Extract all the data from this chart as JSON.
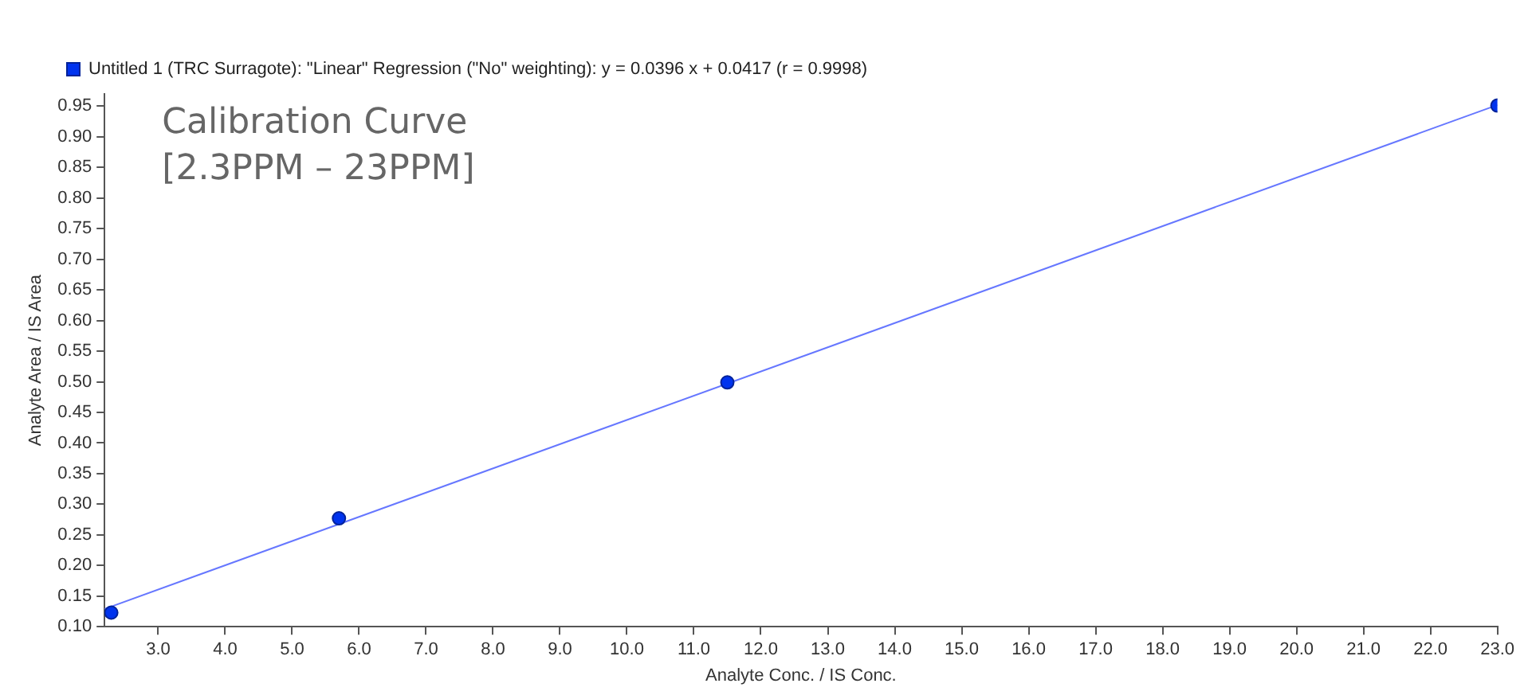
{
  "chart_data": {
    "type": "scatter",
    "xlabel": "Analyte Conc. / IS Conc.",
    "ylabel": "Analyte Area / IS Area",
    "annotations": [
      "Calibration Curve",
      "[2.3PPM – 23PPM]"
    ],
    "series": [
      {
        "name": "Untitled 1 (TRC Surragote): \"Linear\" Regression (\"No\" weighting): y = 0.0396 x + 0.0417 (r = 0.9998)",
        "marker": "circle",
        "color": "#0033ee",
        "x": [
          2.3,
          5.7,
          11.5,
          23.0
        ],
        "values": [
          0.123,
          0.277,
          0.499,
          0.951
        ]
      },
      {
        "type": "line",
        "marker": "none",
        "color": "#6677ff",
        "x": [
          2.2,
          23.0
        ],
        "values": [
          0.129,
          0.952
        ]
      }
    ],
    "xlim": [
      2.2,
      23.0
    ],
    "xticks": [
      {
        "value": 3,
        "label": "3.0"
      },
      {
        "value": 4,
        "label": "4.0"
      },
      {
        "value": 5,
        "label": "5.0"
      },
      {
        "value": 6,
        "label": "6.0"
      },
      {
        "value": 7,
        "label": "7.0"
      },
      {
        "value": 8,
        "label": "8.0"
      },
      {
        "value": 9,
        "label": "9.0"
      },
      {
        "value": 10,
        "label": "10.0"
      },
      {
        "value": 11,
        "label": "11.0"
      },
      {
        "value": 12,
        "label": "12.0"
      },
      {
        "value": 13,
        "label": "13.0"
      },
      {
        "value": 14,
        "label": "14.0"
      },
      {
        "value": 15,
        "label": "15.0"
      },
      {
        "value": 16,
        "label": "16.0"
      },
      {
        "value": 17,
        "label": "17.0"
      },
      {
        "value": 18,
        "label": "18.0"
      },
      {
        "value": 19,
        "label": "19.0"
      },
      {
        "value": 20,
        "label": "20.0"
      },
      {
        "value": 21,
        "label": "21.0"
      },
      {
        "value": 22,
        "label": "22.0"
      },
      {
        "value": 23,
        "label": "23.0"
      }
    ],
    "ylim": [
      0.1,
      0.97
    ],
    "yticks": [
      {
        "value": 0.1,
        "label": "0.10"
      },
      0.15,
      {
        "value": 0.2,
        "label": "0.20"
      },
      0.25,
      {
        "value": 0.3,
        "label": "0.30"
      },
      0.35,
      {
        "value": 0.4,
        "label": "0.40"
      },
      0.45,
      {
        "value": 0.5,
        "label": "0.50"
      },
      0.55,
      {
        "value": 0.6,
        "label": "0.60"
      },
      0.65,
      {
        "value": 0.7,
        "label": "0.70"
      },
      0.75,
      {
        "value": 0.8,
        "label": "0.80"
      },
      0.85,
      {
        "value": 0.9,
        "label": "0.90"
      },
      0.95
    ],
    "legend": "top left"
  }
}
